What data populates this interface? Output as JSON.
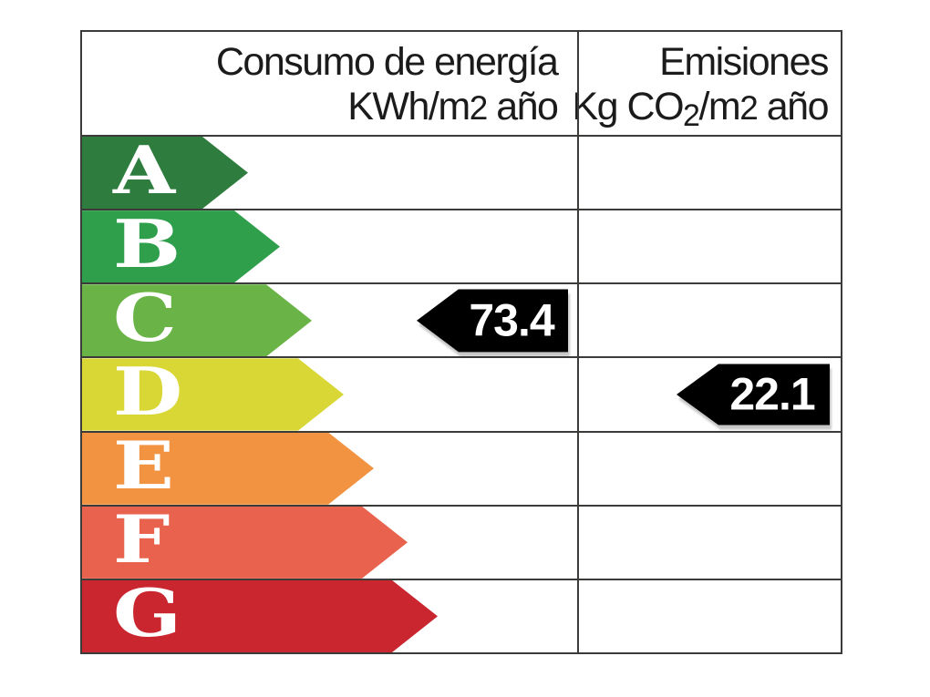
{
  "table": {
    "border_color": "#3b3b39",
    "header": {
      "consumption_title": "Consumo de energía",
      "consumption_unit": {
        "prefix": "KWh/m",
        "exp": "2",
        "suffix": " año"
      },
      "emissions_title": "Emisiones",
      "emissions_unit": {
        "prefix": "Kg CO",
        "sub": "2",
        "mid": "/m",
        "exp": "2",
        "suffix": " año"
      }
    },
    "ratings": [
      {
        "letter": "A",
        "color": "#2e7d3e",
        "arrow_width": 182
      },
      {
        "letter": "B",
        "color": "#2f9f4c",
        "arrow_width": 217
      },
      {
        "letter": "C",
        "color": "#6ab346",
        "arrow_width": 252
      },
      {
        "letter": "D",
        "color": "#d8d735",
        "arrow_width": 287
      },
      {
        "letter": "E",
        "color": "#f19341",
        "arrow_width": 320
      },
      {
        "letter": "F",
        "color": "#e9624d",
        "arrow_width": 357
      },
      {
        "letter": "G",
        "color": "#c92630",
        "arrow_width": 390
      }
    ],
    "markers": [
      {
        "value": "73.4",
        "rating": "C",
        "column": "consumption",
        "bg": "#000000",
        "text_color": "#ffffff"
      },
      {
        "value": "22.1",
        "rating": "D",
        "column": "emissions",
        "bg": "#000000",
        "text_color": "#ffffff"
      }
    ]
  },
  "chart_data": {
    "type": "table",
    "columns": [
      "Consumo de energía KWh/m2 año",
      "Emisiones Kg CO2/m2 año"
    ],
    "categories": [
      "A",
      "B",
      "C",
      "D",
      "E",
      "F",
      "G"
    ],
    "series": [
      {
        "name": "Consumo de energía KWh/m2 año",
        "value": 73.4,
        "rating": "C"
      },
      {
        "name": "Emisiones Kg CO2/m2 año",
        "value": 22.1,
        "rating": "D"
      }
    ],
    "rating_colors": {
      "A": "#2e7d3e",
      "B": "#2f9f4c",
      "C": "#6ab346",
      "D": "#d8d735",
      "E": "#f19341",
      "F": "#e9624d",
      "G": "#c92630"
    },
    "legend_position": "none",
    "grid": true
  }
}
